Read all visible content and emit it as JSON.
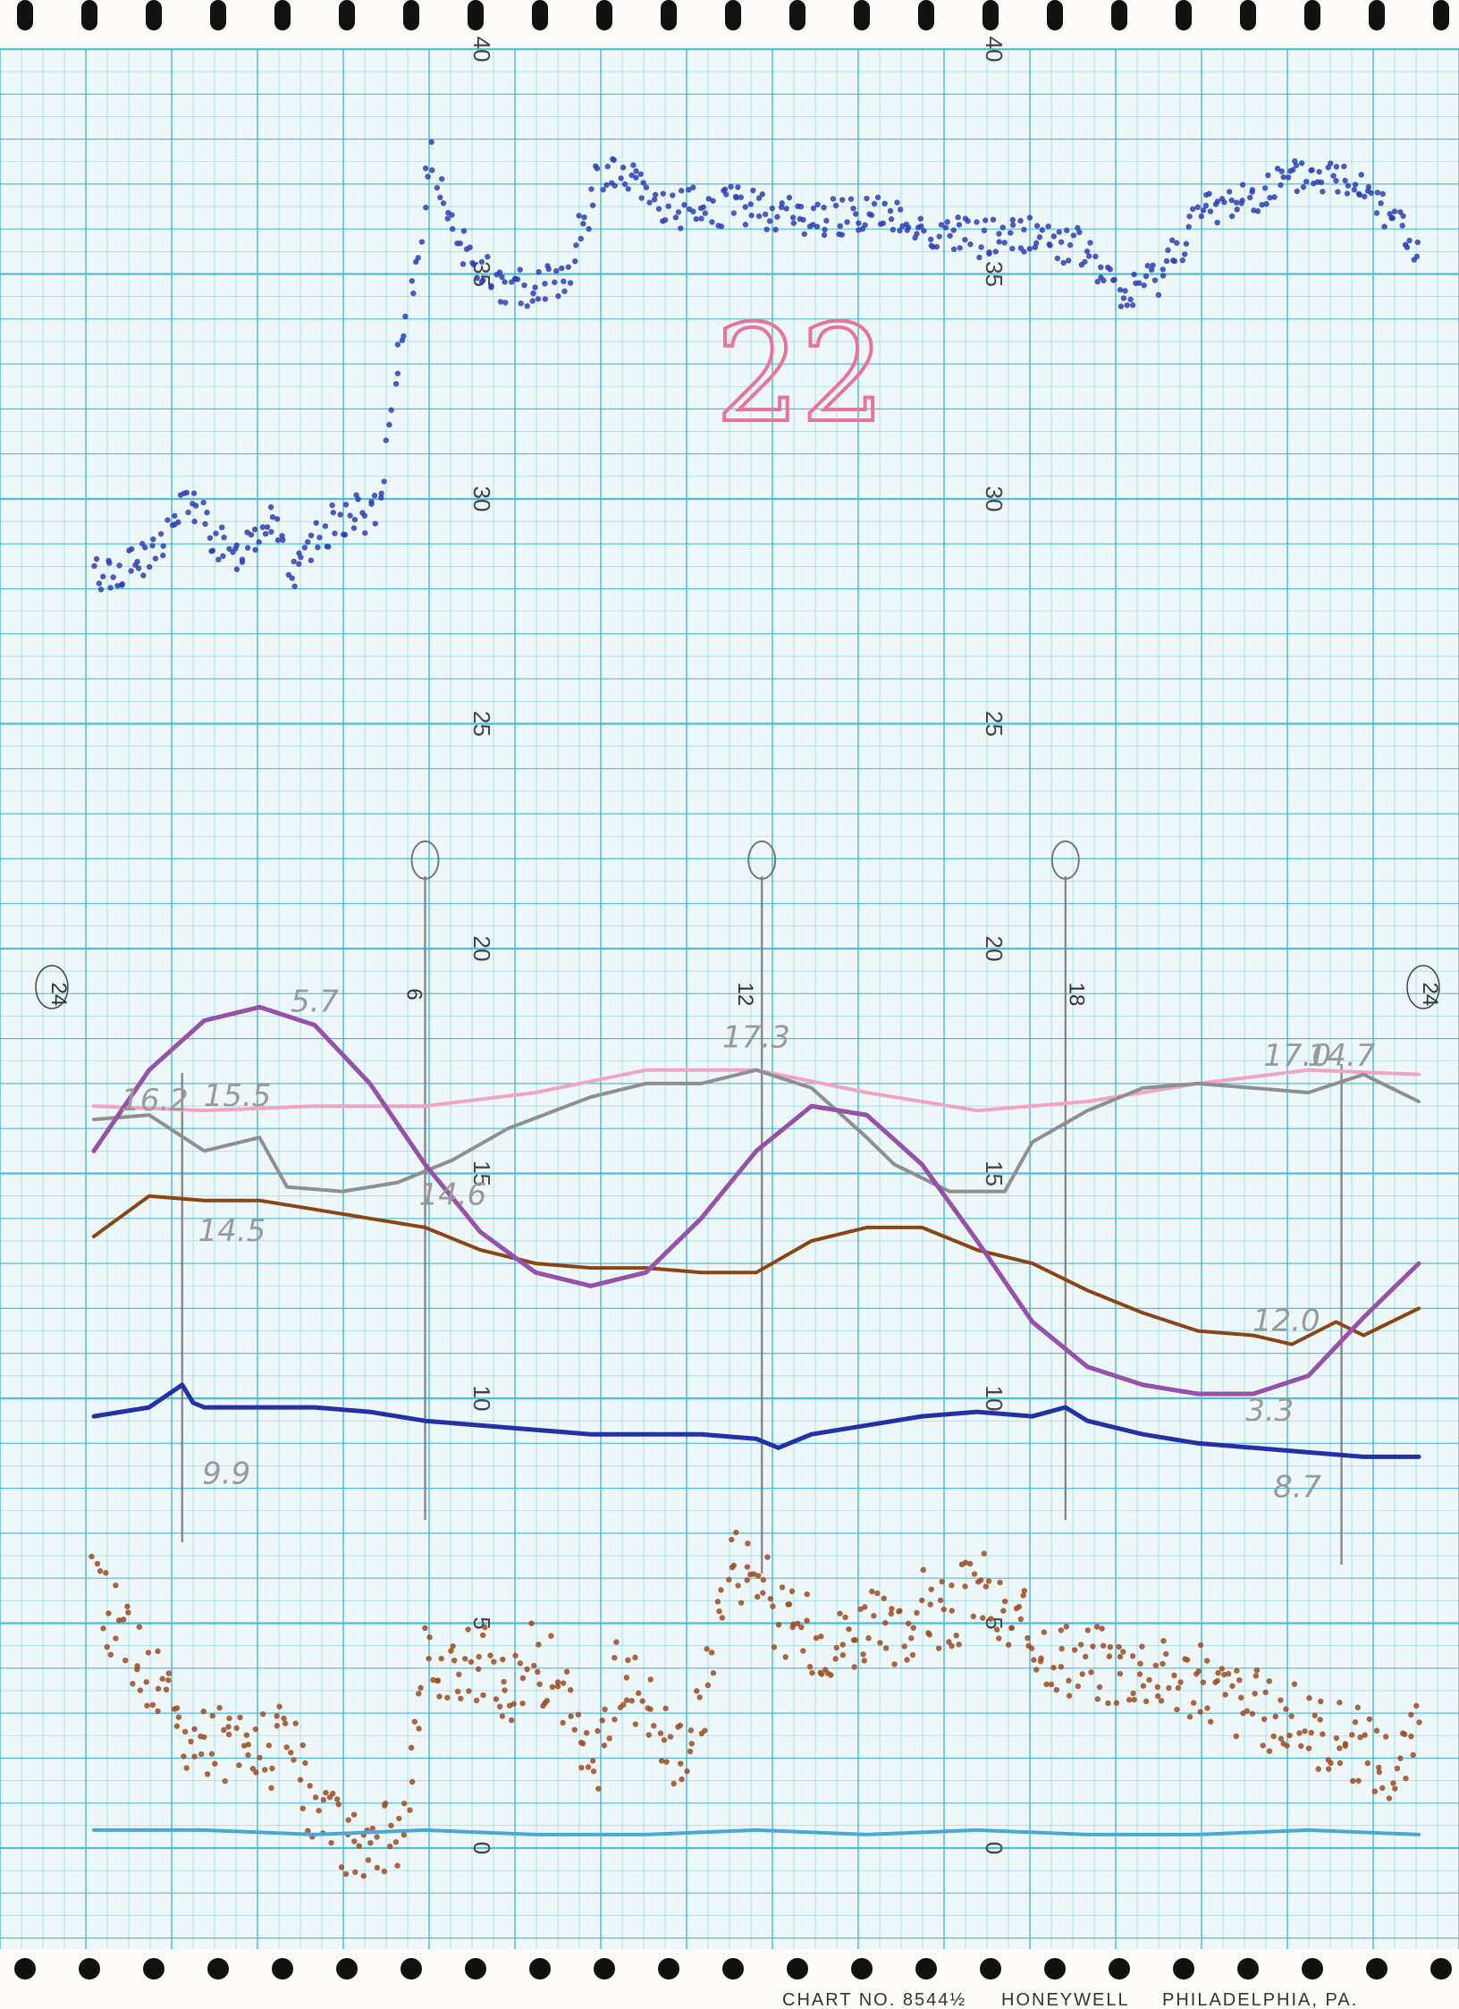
{
  "page_number": "22",
  "footer": {
    "chart_no": "CHART NO. 8544½",
    "maker": "HONEYWELL",
    "city": "PHILADELPHIA, PA."
  },
  "hour_labels": [
    "24",
    "6",
    "12",
    "18",
    "24"
  ],
  "y_ticks": [
    "0",
    "5",
    "10",
    "15",
    "20",
    "25",
    "30",
    "35",
    "40"
  ],
  "chart_data": {
    "type": "line",
    "x_unit": "hour",
    "xlim": [
      0,
      24
    ],
    "ylim": [
      0,
      40
    ],
    "series": [
      {
        "color": "#2b3fb0",
        "style": "dots",
        "x": [
          0,
          1,
          1.7,
          2.5,
          3.3,
          3.6,
          4.4,
          5.2,
          5.5,
          6.1,
          6.8,
          7.5,
          8.6,
          9.2,
          9.8,
          10.4,
          11.0,
          12.0,
          13.0,
          14.0,
          15.0,
          16.0,
          17.0,
          18.0,
          18.6,
          19.3,
          20.0,
          21.0,
          22.0,
          23.0,
          23.6,
          24.0
        ],
        "y": [
          28.3,
          28.6,
          30,
          28.6,
          29.8,
          28.2,
          29.6,
          29.7,
          32.8,
          37.5,
          35.3,
          34.6,
          35.0,
          37.3,
          37.0,
          36.4,
          36.5,
          36.5,
          36.2,
          36.4,
          36.0,
          35.8,
          35.9,
          35.5,
          34.4,
          35.0,
          36.3,
          36.8,
          37.2,
          37.1,
          36.2,
          35.4
        ]
      },
      {
        "color": "#f2a5c2",
        "style": "line",
        "x": [
          0,
          2,
          4,
          6,
          8,
          10,
          12,
          14,
          16,
          18,
          20,
          22,
          24
        ],
        "y": [
          16.5,
          16.4,
          16.5,
          16.5,
          16.8,
          17.3,
          17.3,
          16.8,
          16.4,
          16.6,
          17.0,
          17.3,
          17.2
        ]
      },
      {
        "color": "#8f8f8f",
        "style": "line",
        "x": [
          0,
          1,
          2,
          3,
          3.5,
          4.5,
          5.5,
          6.5,
          7.5,
          9,
          10,
          11,
          12,
          13,
          14,
          14.5,
          15.5,
          16.5,
          17,
          18,
          19,
          20,
          21,
          22,
          23,
          24
        ],
        "y": [
          16.2,
          16.3,
          15.5,
          15.8,
          14.7,
          14.6,
          14.8,
          15.3,
          16.0,
          16.7,
          17.0,
          17.0,
          17.3,
          16.9,
          15.8,
          15.2,
          14.6,
          14.6,
          15.7,
          16.4,
          16.9,
          17.0,
          16.9,
          16.8,
          17.2,
          16.6
        ]
      },
      {
        "color": "#8b4513",
        "style": "line",
        "x": [
          0,
          1,
          2,
          3,
          4,
          5,
          6,
          7,
          8,
          9,
          10,
          11,
          12,
          13,
          14,
          15,
          16,
          17,
          18,
          19,
          20,
          21,
          21.7,
          22.5,
          23,
          24
        ],
        "y": [
          13.6,
          14.5,
          14.4,
          14.4,
          14.2,
          14.0,
          13.8,
          13.3,
          13.0,
          12.9,
          12.9,
          12.8,
          12.8,
          13.5,
          13.8,
          13.8,
          13.3,
          13.0,
          12.4,
          11.9,
          11.5,
          11.4,
          11.2,
          11.7,
          11.4,
          12.0
        ]
      },
      {
        "color": "#9552a8",
        "style": "line",
        "x": [
          0,
          1,
          2,
          3,
          4,
          5,
          6,
          7,
          8,
          9,
          10,
          11,
          12,
          13,
          14,
          15,
          16,
          17,
          18,
          19,
          20,
          21,
          22,
          23,
          24
        ],
        "y": [
          15.5,
          17.3,
          18.4,
          18.7,
          18.3,
          17.0,
          15.2,
          13.7,
          12.8,
          12.5,
          12.8,
          14.0,
          15.5,
          16.5,
          16.3,
          15.2,
          13.5,
          11.7,
          10.7,
          10.3,
          10.1,
          10.1,
          10.5,
          11.8,
          13.0
        ]
      },
      {
        "color": "#2330a6",
        "style": "line",
        "x": [
          0,
          1,
          1.6,
          1.8,
          2,
          3,
          4,
          5,
          6,
          7,
          8,
          9,
          10,
          11,
          12,
          12.4,
          13,
          14,
          15,
          16,
          17,
          17.6,
          18,
          19,
          20,
          21,
          22,
          23,
          24
        ],
        "y": [
          9.6,
          9.8,
          10.3,
          9.9,
          9.8,
          9.8,
          9.8,
          9.7,
          9.5,
          9.4,
          9.3,
          9.2,
          9.2,
          9.2,
          9.1,
          8.9,
          9.2,
          9.4,
          9.6,
          9.7,
          9.6,
          9.8,
          9.5,
          9.2,
          9.0,
          8.9,
          8.8,
          8.7,
          8.7
        ]
      },
      {
        "color": "#9c4a1f",
        "style": "dots",
        "x": [
          0,
          0.5,
          1,
          1.5,
          2,
          2.5,
          3,
          3.5,
          4,
          4.5,
          5,
          5.5,
          6,
          6.5,
          7,
          7.5,
          8,
          8.5,
          9,
          9.5,
          10,
          10.5,
          11,
          11.5,
          12,
          12.5,
          13,
          13.5,
          14,
          14.5,
          15,
          15.5,
          16,
          16.5,
          17,
          17.5,
          18,
          18.5,
          19,
          19.5,
          20,
          20.5,
          21,
          21.5,
          22,
          22.5,
          23,
          23.5,
          24
        ],
        "y": [
          5.7,
          4.9,
          3.9,
          2.8,
          2.2,
          2.4,
          2.0,
          2.5,
          0.8,
          0.3,
          0.2,
          0.3,
          4.0,
          3.8,
          4.2,
          3.6,
          4.3,
          3.5,
          1.5,
          3.8,
          3.5,
          2.0,
          3.0,
          6.5,
          6.2,
          4.9,
          4.8,
          4.6,
          5.0,
          4.5,
          5.4,
          5.0,
          6.0,
          4.9,
          4.8,
          4.3,
          4.2,
          4.0,
          4.1,
          3.8,
          3.7,
          3.4,
          3.1,
          2.9,
          2.7,
          2.5,
          2.2,
          1.8,
          2.4
        ]
      },
      {
        "color": "#4aa7d6",
        "style": "line",
        "x": [
          0,
          2,
          4,
          6,
          8,
          10,
          12,
          14,
          16,
          18,
          20,
          22,
          24
        ],
        "y": [
          0.4,
          0.4,
          0.3,
          0.4,
          0.3,
          0.3,
          0.4,
          0.3,
          0.4,
          0.3,
          0.3,
          0.4,
          0.3
        ]
      }
    ],
    "annotations": [
      {
        "text": "16.2",
        "x": 1.1,
        "y": 16.4
      },
      {
        "text": "15.5",
        "x": 2.6,
        "y": 16.5
      },
      {
        "text": "5.7",
        "x": 4.0,
        "y": 18.6
      },
      {
        "text": "14.5",
        "x": 2.5,
        "y": 13.5
      },
      {
        "text": "14.6",
        "x": 6.5,
        "y": 14.3
      },
      {
        "text": "17.3",
        "x": 12.0,
        "y": 17.8
      },
      {
        "text": "17.0",
        "x": 21.8,
        "y": 17.4
      },
      {
        "text": "14.7",
        "x": 22.6,
        "y": 17.4
      },
      {
        "text": "12.0",
        "x": 21.6,
        "y": 11.5
      },
      {
        "text": "3.3",
        "x": 21.3,
        "y": 9.5
      },
      {
        "text": "9.9",
        "x": 2.4,
        "y": 8.1
      },
      {
        "text": "8.7",
        "x": 21.8,
        "y": 7.8
      }
    ]
  }
}
